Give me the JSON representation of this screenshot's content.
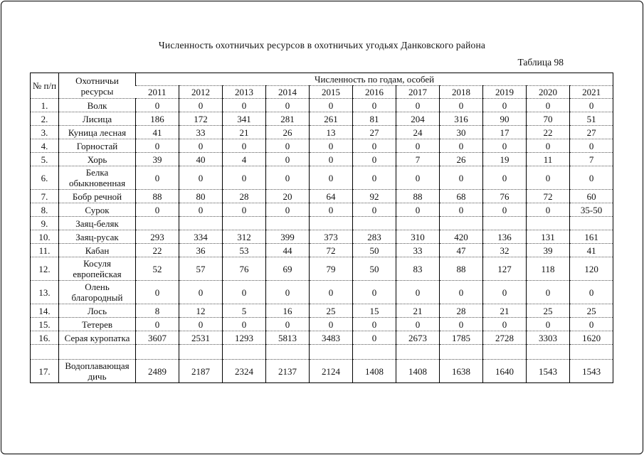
{
  "page": {
    "title": "Численность охотничьих ресурсов в охотничьих угодьях Данковского района",
    "table_caption": "Таблица 98"
  },
  "table": {
    "header": {
      "num": "№ п/п",
      "resource": "Охотничьи ресурсы",
      "years_group": "Численность по годам, особей",
      "years": [
        "2011",
        "2012",
        "2013",
        "2014",
        "2015",
        "2016",
        "2017",
        "2018",
        "2019",
        "2020",
        "2021"
      ]
    },
    "rows": [
      {
        "num": "1.",
        "name": "Волк",
        "values": [
          "0",
          "0",
          "0",
          "0",
          "0",
          "0",
          "0",
          "0",
          "0",
          "0",
          "0"
        ]
      },
      {
        "num": "2.",
        "name": "Лисица",
        "values": [
          "186",
          "172",
          "341",
          "281",
          "261",
          "81",
          "204",
          "316",
          "90",
          "70",
          "51"
        ]
      },
      {
        "num": "3.",
        "name": "Куница лесная",
        "values": [
          "41",
          "33",
          "21",
          "26",
          "13",
          "27",
          "24",
          "30",
          "17",
          "22",
          "27"
        ]
      },
      {
        "num": "4.",
        "name": "Горностай",
        "values": [
          "0",
          "0",
          "0",
          "0",
          "0",
          "0",
          "0",
          "0",
          "0",
          "0",
          "0"
        ]
      },
      {
        "num": "5.",
        "name": "Хорь",
        "values": [
          "39",
          "40",
          "4",
          "0",
          "0",
          "0",
          "7",
          "26",
          "19",
          "11",
          "7"
        ]
      },
      {
        "num": "6.",
        "name": "Белка обыкновенная",
        "values": [
          "0",
          "0",
          "0",
          "0",
          "0",
          "0",
          "0",
          "0",
          "0",
          "0",
          "0"
        ]
      },
      {
        "num": "7.",
        "name": "Бобр речной",
        "values": [
          "88",
          "80",
          "28",
          "20",
          "64",
          "92",
          "88",
          "68",
          "76",
          "72",
          "60"
        ]
      },
      {
        "num": "8.",
        "name": "Сурок",
        "values": [
          "0",
          "0",
          "0",
          "0",
          "0",
          "0",
          "0",
          "0",
          "0",
          "0",
          "35-50"
        ]
      },
      {
        "num": "9.",
        "name": "Заяц-беляк",
        "values": [
          "",
          "",
          "",
          "",
          "",
          "",
          "",
          "",
          "",
          "",
          ""
        ]
      },
      {
        "num": "10.",
        "name": "Заяц-русак",
        "values": [
          "293",
          "334",
          "312",
          "399",
          "373",
          "283",
          "310",
          "420",
          "136",
          "131",
          "161"
        ]
      },
      {
        "num": "11.",
        "name": "Кабан",
        "values": [
          "22",
          "36",
          "53",
          "44",
          "72",
          "50",
          "33",
          "47",
          "32",
          "39",
          "41"
        ]
      },
      {
        "num": "12.",
        "name": "Косуля европейская",
        "values": [
          "52",
          "57",
          "76",
          "69",
          "79",
          "50",
          "83",
          "88",
          "127",
          "118",
          "120"
        ]
      },
      {
        "num": "13.",
        "name": "Олень благородный",
        "values": [
          "0",
          "0",
          "0",
          "0",
          "0",
          "0",
          "0",
          "0",
          "0",
          "0",
          "0"
        ]
      },
      {
        "num": "14.",
        "name": "Лось",
        "values": [
          "8",
          "12",
          "5",
          "16",
          "25",
          "15",
          "21",
          "28",
          "21",
          "25",
          "25"
        ]
      },
      {
        "num": "15.",
        "name": "Тетерев",
        "values": [
          "0",
          "0",
          "0",
          "0",
          "0",
          "0",
          "0",
          "0",
          "0",
          "0",
          "0"
        ]
      },
      {
        "num": "16.",
        "name": "Серая куропатка",
        "values": [
          "3607",
          "2531",
          "1293",
          "5813",
          "3483",
          "0",
          "2673",
          "1785",
          "2728",
          "3303",
          "1620"
        ]
      },
      {
        "num": "",
        "name": "",
        "values": [
          "",
          "",
          "",
          "",
          "",
          "",
          "",
          "",
          "",
          "",
          ""
        ],
        "spacer": true
      },
      {
        "num": "17.",
        "name": "Водоплавающая дичь",
        "values": [
          "2489",
          "2187",
          "2324",
          "2137",
          "2124",
          "1408",
          "1408",
          "1638",
          "1640",
          "1543",
          "1543"
        ]
      }
    ]
  }
}
